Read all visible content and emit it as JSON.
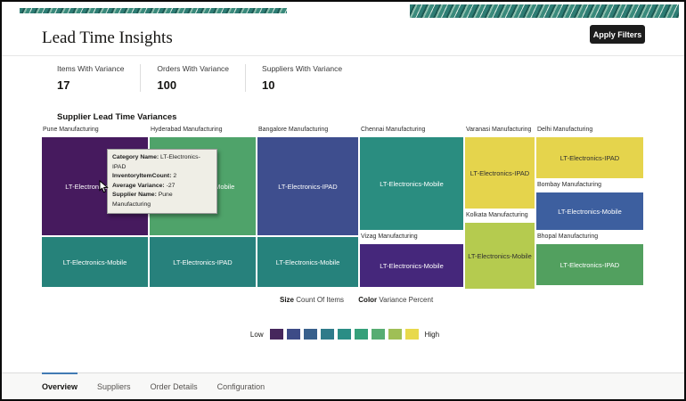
{
  "header": {
    "title": "Lead Time Insights",
    "apply_filters": "Apply Filters"
  },
  "stats": [
    {
      "label": "Items With Variance",
      "value": "17"
    },
    {
      "label": "Orders With Variance",
      "value": "100"
    },
    {
      "label": "Suppliers With Variance",
      "value": "10"
    }
  ],
  "treemap": {
    "title": "Supplier Lead Time Variances",
    "size_label": "Size",
    "size_value": "Count Of Items",
    "color_label": "Color",
    "color_value": "Variance Percent",
    "groups": [
      {
        "name": "Pune Manufacturing",
        "cells": [
          {
            "label": "LT-Electronics-IPAD",
            "color": "#461a5e"
          },
          {
            "label": "LT-Electronics-Mobile",
            "color": "#26827a"
          }
        ]
      },
      {
        "name": "Hyderabad Manufacturing",
        "cells": [
          {
            "label": "LT-Electronics-Mobile",
            "color": "#4fa36a"
          },
          {
            "label": "LT-Electronics-IPAD",
            "color": "#27817c"
          }
        ]
      },
      {
        "name": "Bangalore Manufacturing",
        "cells": [
          {
            "label": "LT-Electronics-IPAD",
            "color": "#3e4e8e"
          },
          {
            "label": "LT-Electronics-Mobile",
            "color": "#26827c"
          }
        ]
      },
      {
        "name": "Chennai Manufacturing",
        "cells": [
          {
            "label": "LT-Electronics-Mobile",
            "color": "#2a8d80"
          }
        ]
      },
      {
        "name": "Vizag Manufacturing",
        "cells": [
          {
            "label": "LT-Electronics-Mobile",
            "color": "#45277b"
          }
        ]
      },
      {
        "name": "Varanasi Manufacturing",
        "cells": [
          {
            "label": "LT-Electronics-IPAD",
            "color": "#e5d44c"
          }
        ]
      },
      {
        "name": "Kolkata Manufacturing",
        "cells": [
          {
            "label": "LT-Electronics-Mobile",
            "color": "#b5cb4f"
          }
        ]
      },
      {
        "name": "Delhi Manufacturing",
        "cells": [
          {
            "label": "LT-Electronics-IPAD",
            "color": "#e5d44c"
          }
        ]
      },
      {
        "name": "Bombay Manufacturing",
        "cells": [
          {
            "label": "LT-Electronics-Mobile",
            "color": "#3d5f9f"
          }
        ]
      },
      {
        "name": "Bhopal Manufacturing",
        "cells": [
          {
            "label": "LT-Electronics-IPAD",
            "color": "#52a05f"
          }
        ]
      }
    ]
  },
  "tooltip": {
    "lines": [
      {
        "label": "Category Name:",
        "value": " LT-Electronics-IPAD"
      },
      {
        "label": "InventoryItemCount:",
        "value": " 2"
      },
      {
        "label": "Average Variance:",
        "value": " -27"
      },
      {
        "label": "Supplier Name:",
        "value": " Pune Manufacturing"
      }
    ]
  },
  "legend": {
    "low": "Low",
    "high": "High",
    "colors": [
      "#46275c",
      "#3d4b87",
      "#38608c",
      "#2f7b8a",
      "#2a8d85",
      "#35a07a",
      "#57ad72",
      "#9fbf56",
      "#e8d94c"
    ]
  },
  "tabs": [
    {
      "label": "Overview"
    },
    {
      "label": "Suppliers"
    },
    {
      "label": "Order Details"
    },
    {
      "label": "Configuration"
    }
  ]
}
